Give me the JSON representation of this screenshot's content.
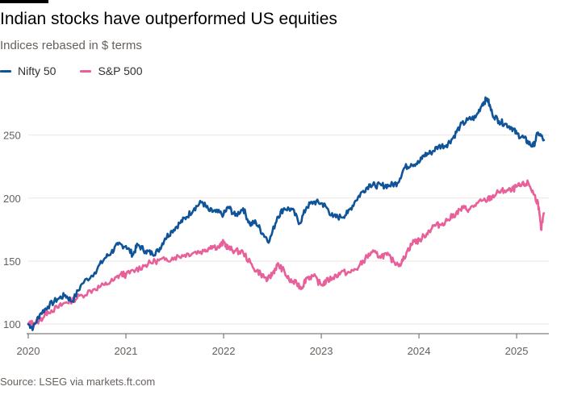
{
  "title": "Indian stocks have outperformed US equities",
  "subtitle": "Indices rebased in $ terms",
  "source": "Source: LSEG via markets.ft.com",
  "colors": {
    "nifty": "#0f5499",
    "sp500": "#e7609a",
    "grid": "#ebe6e1",
    "axis": "#66605c"
  },
  "chart_data": {
    "type": "line",
    "xlabel": "",
    "ylabel": "",
    "xlim": [
      2020.0,
      2025.33
    ],
    "ylim": [
      95,
      290
    ],
    "yticks": [
      100,
      150,
      200,
      250
    ],
    "xticks": [
      2020,
      2021,
      2022,
      2023,
      2024,
      2025
    ],
    "xtick_labels": [
      "2020",
      "2021",
      "2022",
      "2023",
      "2024",
      "2025"
    ],
    "grid": true,
    "legend_position": "top-left",
    "series": [
      {
        "name": "Nifty 50",
        "color": "#0f5499",
        "points": [
          [
            2020.0,
            100
          ],
          [
            2020.05,
            97
          ],
          [
            2020.12,
            108
          ],
          [
            2020.2,
            114
          ],
          [
            2020.3,
            120
          ],
          [
            2020.38,
            123
          ],
          [
            2020.45,
            118
          ],
          [
            2020.55,
            132
          ],
          [
            2020.68,
            141
          ],
          [
            2020.78,
            152
          ],
          [
            2020.85,
            157
          ],
          [
            2020.92,
            163
          ],
          [
            2021.0,
            162
          ],
          [
            2021.07,
            155
          ],
          [
            2021.12,
            163
          ],
          [
            2021.2,
            158
          ],
          [
            2021.27,
            156
          ],
          [
            2021.33,
            158
          ],
          [
            2021.4,
            168
          ],
          [
            2021.47,
            174
          ],
          [
            2021.55,
            180
          ],
          [
            2021.62,
            185
          ],
          [
            2021.7,
            192
          ],
          [
            2021.78,
            197
          ],
          [
            2021.85,
            190
          ],
          [
            2021.92,
            189
          ],
          [
            2022.0,
            187
          ],
          [
            2022.05,
            193
          ],
          [
            2022.12,
            186
          ],
          [
            2022.2,
            192
          ],
          [
            2022.27,
            179
          ],
          [
            2022.33,
            181
          ],
          [
            2022.4,
            172
          ],
          [
            2022.47,
            166
          ],
          [
            2022.55,
            185
          ],
          [
            2022.62,
            192
          ],
          [
            2022.7,
            191
          ],
          [
            2022.78,
            180
          ],
          [
            2022.85,
            193
          ],
          [
            2022.92,
            197
          ],
          [
            2023.0,
            196
          ],
          [
            2023.05,
            193
          ],
          [
            2023.12,
            185
          ],
          [
            2023.2,
            185
          ],
          [
            2023.27,
            188
          ],
          [
            2023.35,
            198
          ],
          [
            2023.42,
            205
          ],
          [
            2023.5,
            211
          ],
          [
            2023.55,
            210
          ],
          [
            2023.62,
            210
          ],
          [
            2023.7,
            210
          ],
          [
            2023.78,
            212
          ],
          [
            2023.85,
            224
          ],
          [
            2023.92,
            227
          ],
          [
            2024.0,
            228
          ],
          [
            2024.05,
            234
          ],
          [
            2024.12,
            236
          ],
          [
            2024.2,
            241
          ],
          [
            2024.28,
            242
          ],
          [
            2024.35,
            248
          ],
          [
            2024.42,
            257
          ],
          [
            2024.5,
            262
          ],
          [
            2024.58,
            264
          ],
          [
            2024.65,
            275
          ],
          [
            2024.7,
            279
          ],
          [
            2024.75,
            267
          ],
          [
            2024.82,
            261
          ],
          [
            2024.88,
            259
          ],
          [
            2024.95,
            256
          ],
          [
            2025.0,
            251
          ],
          [
            2025.07,
            248
          ],
          [
            2025.12,
            244
          ],
          [
            2025.17,
            241
          ],
          [
            2025.22,
            252
          ],
          [
            2025.28,
            246
          ]
        ]
      },
      {
        "name": "S&P 500",
        "color": "#e7609a",
        "points": [
          [
            2020.0,
            100
          ],
          [
            2020.05,
            101
          ],
          [
            2020.12,
            103
          ],
          [
            2020.2,
            110
          ],
          [
            2020.3,
            113
          ],
          [
            2020.38,
            117
          ],
          [
            2020.45,
            119
          ],
          [
            2020.55,
            123
          ],
          [
            2020.68,
            128
          ],
          [
            2020.78,
            131
          ],
          [
            2020.88,
            135
          ],
          [
            2020.95,
            140
          ],
          [
            2021.0,
            139
          ],
          [
            2021.1,
            143
          ],
          [
            2021.2,
            147
          ],
          [
            2021.3,
            150
          ],
          [
            2021.4,
            151
          ],
          [
            2021.5,
            153
          ],
          [
            2021.6,
            155
          ],
          [
            2021.7,
            157
          ],
          [
            2021.8,
            158
          ],
          [
            2021.87,
            162
          ],
          [
            2021.95,
            161
          ],
          [
            2022.0,
            165
          ],
          [
            2022.05,
            160
          ],
          [
            2022.12,
            158
          ],
          [
            2022.2,
            157
          ],
          [
            2022.3,
            145
          ],
          [
            2022.38,
            140
          ],
          [
            2022.45,
            135
          ],
          [
            2022.5,
            140
          ],
          [
            2022.55,
            147
          ],
          [
            2022.6,
            144
          ],
          [
            2022.67,
            135
          ],
          [
            2022.75,
            132
          ],
          [
            2022.8,
            129
          ],
          [
            2022.85,
            137
          ],
          [
            2022.92,
            138
          ],
          [
            2023.0,
            131
          ],
          [
            2023.05,
            134
          ],
          [
            2023.12,
            137
          ],
          [
            2023.2,
            141
          ],
          [
            2023.3,
            141
          ],
          [
            2023.38,
            145
          ],
          [
            2023.45,
            152
          ],
          [
            2023.52,
            157
          ],
          [
            2023.6,
            154
          ],
          [
            2023.67,
            155
          ],
          [
            2023.75,
            149
          ],
          [
            2023.82,
            148
          ],
          [
            2023.88,
            158
          ],
          [
            2023.95,
            166
          ],
          [
            2024.0,
            166
          ],
          [
            2024.08,
            172
          ],
          [
            2024.15,
            178
          ],
          [
            2024.22,
            179
          ],
          [
            2024.3,
            183
          ],
          [
            2024.38,
            188
          ],
          [
            2024.45,
            192
          ],
          [
            2024.52,
            191
          ],
          [
            2024.6,
            196
          ],
          [
            2024.68,
            198
          ],
          [
            2024.75,
            201
          ],
          [
            2024.82,
            205
          ],
          [
            2024.88,
            206
          ],
          [
            2024.95,
            206
          ],
          [
            2025.0,
            209
          ],
          [
            2025.05,
            210
          ],
          [
            2025.12,
            212
          ],
          [
            2025.17,
            204
          ],
          [
            2025.22,
            196
          ],
          [
            2025.25,
            175
          ],
          [
            2025.28,
            188
          ]
        ]
      }
    ]
  }
}
